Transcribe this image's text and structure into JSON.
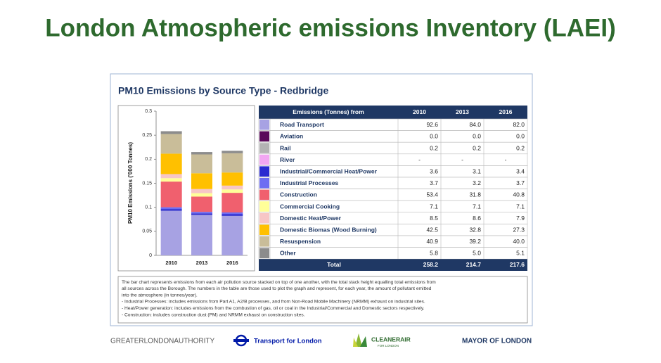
{
  "title": "London Atmospheric emissions Inventory (LAEI)",
  "panel_title": "PM10 Emissions by Source Type - Redbridge",
  "chart_data": {
    "type": "bar",
    "stacked": true,
    "ylabel": "PM10 Emissions ('000 Tonnes)",
    "categories": [
      "2010",
      "2013",
      "2016"
    ],
    "ylim": [
      0,
      0.3
    ],
    "yticks": [
      0,
      0.05,
      0.1,
      0.15,
      0.2,
      0.25,
      0.3
    ],
    "series": [
      {
        "name": "Road Transport",
        "color": "#a7a2e3",
        "values": [
          0.0926,
          0.084,
          0.082
        ]
      },
      {
        "name": "Aviation",
        "color": "#5a0a5a",
        "values": [
          0,
          0,
          0
        ]
      },
      {
        "name": "Rail",
        "color": "#b3b3b3",
        "values": [
          0.0002,
          0.0002,
          0.0002
        ]
      },
      {
        "name": "River",
        "color": "#f2a6f2",
        "values": [
          null,
          null,
          null
        ]
      },
      {
        "name": "Industrial/Commercial Heat/Power",
        "color": "#2a2ad0",
        "values": [
          0.0036,
          0.0031,
          0.0034
        ]
      },
      {
        "name": "Industrial Processes",
        "color": "#6d6df2",
        "values": [
          0.0037,
          0.0032,
          0.0037
        ]
      },
      {
        "name": "Construction",
        "color": "#f0606e",
        "values": [
          0.0534,
          0.0318,
          0.0408
        ]
      },
      {
        "name": "Commercial Cooking",
        "color": "#ffff99",
        "values": [
          0.0071,
          0.0071,
          0.0071
        ]
      },
      {
        "name": "Domestic Heat/Power",
        "color": "#f7c6c6",
        "values": [
          0.0085,
          0.0086,
          0.0079
        ]
      },
      {
        "name": "Domestic Biomas (Wood Burning)",
        "color": "#ffc000",
        "values": [
          0.0425,
          0.0328,
          0.0273
        ]
      },
      {
        "name": "Resuspension",
        "color": "#c9bd99",
        "values": [
          0.0409,
          0.0392,
          0.04
        ]
      },
      {
        "name": "Other",
        "color": "#8c8c8c",
        "values": [
          0.0058,
          0.005,
          0.0051
        ]
      }
    ]
  },
  "table": {
    "header": [
      "Emissions (Tonnes) from",
      "2010",
      "2013",
      "2016"
    ],
    "rows": [
      [
        "92.6",
        "84.0",
        "82.0"
      ],
      [
        "0.0",
        "0.0",
        "0.0"
      ],
      [
        "0.2",
        "0.2",
        "0.2"
      ],
      [
        "-",
        "-",
        "-"
      ],
      [
        "3.6",
        "3.1",
        "3.4"
      ],
      [
        "3.7",
        "3.2",
        "3.7"
      ],
      [
        "53.4",
        "31.8",
        "40.8"
      ],
      [
        "7.1",
        "7.1",
        "7.1"
      ],
      [
        "8.5",
        "8.6",
        "7.9"
      ],
      [
        "42.5",
        "32.8",
        "27.3"
      ],
      [
        "40.9",
        "39.2",
        "40.0"
      ],
      [
        "5.8",
        "5.0",
        "5.1"
      ]
    ],
    "total": {
      "label": "Total",
      "values": [
        "258.2",
        "214.7",
        "217.6"
      ]
    }
  },
  "note": {
    "lines": [
      "The bar chart represents emissions from each air pollution source stacked on top of one another, with the total stack height equalling total emissions from",
      "all sources across the Borough. The numbers in the table are those used to plot the graph and represent, for each year, the amount of pollutant emitted",
      "into the atmosphere (in tonnes/year).",
      " - Industrial Processes:  includes emissions from Part A1, A2/B processes, and from Non-Road Mobile Machinery (NRMM) exhaust on industrial sites.",
      " - Heat/Power generation: includes emissions from the combustion of gas, oil or coal in the Industrial/Commercial and Domestic sectors respectively.",
      " - Construction: includes construction dust (PM) and NRMM exhaust on construction sites."
    ]
  },
  "logos": {
    "gla": "GREATERLONDONAUTHORITY",
    "tfl": "Transport for London",
    "cleaner_air": "CLEANERAIR",
    "cleaner_air_sub": "FOR LONDON",
    "mayor": "MAYOR OF LONDON"
  }
}
